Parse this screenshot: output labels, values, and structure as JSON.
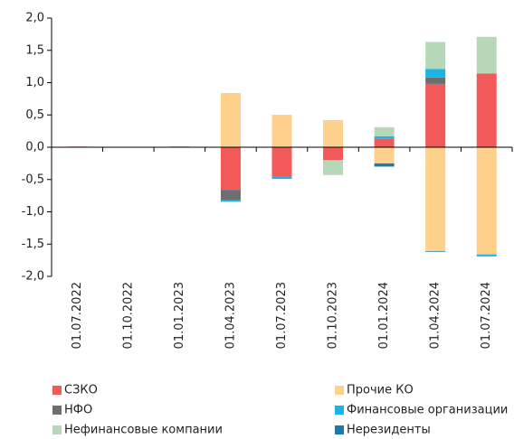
{
  "chart_data": {
    "type": "stacked_bar",
    "categories": [
      "01.07.2022",
      "01.10.2022",
      "01.01.2023",
      "01.04.2023",
      "01.07.2023",
      "01.10.2023",
      "01.01.2024",
      "01.04.2024",
      "01.07.2024"
    ],
    "series": [
      {
        "name": "СЗКО",
        "color": "#f25a5a",
        "values": [
          0.01,
          0,
          0,
          -0.66,
          -0.46,
          -0.2,
          0.13,
          0.98,
          1.14
        ]
      },
      {
        "name": "Прочие КО",
        "color": "#fdd08c",
        "values": [
          0,
          0,
          0,
          0.84,
          0.49,
          0.42,
          -0.25,
          -1.61,
          -1.66
        ]
      },
      {
        "name": "НФО",
        "color": "#6e6e6e",
        "values": [
          0,
          0,
          0.01,
          -0.16,
          0,
          0,
          0,
          0.1,
          0
        ]
      },
      {
        "name": "Финансовые организации",
        "color": "#1ab4e8",
        "values": [
          0,
          0,
          0,
          -0.02,
          -0.03,
          0,
          0.04,
          0.13,
          -0.03
        ]
      },
      {
        "name": "Нефинансовые компании",
        "color": "#b7d7b9",
        "values": [
          0,
          0,
          0,
          -0.01,
          0.01,
          -0.23,
          0.14,
          0.42,
          0.57
        ]
      },
      {
        "name": "Нерезиденты",
        "color": "#1f78aa",
        "values": [
          0,
          0,
          0,
          0,
          0,
          0,
          -0.05,
          -0.01,
          0
        ]
      }
    ],
    "ylim": [
      -2,
      2
    ],
    "yticks": [
      {
        "value": -2,
        "label": "-2,0"
      },
      {
        "value": -1.5,
        "label": "-1,5"
      },
      {
        "value": -1,
        "label": "-1,0"
      },
      {
        "value": -0.5,
        "label": "-0,5"
      },
      {
        "value": 0,
        "label": "0,0"
      },
      {
        "value": 0.5,
        "label": "0,5"
      },
      {
        "value": 1,
        "label": "1,0"
      },
      {
        "value": 1.5,
        "label": "1,5"
      },
      {
        "value": 2,
        "label": "2,0"
      }
    ]
  }
}
